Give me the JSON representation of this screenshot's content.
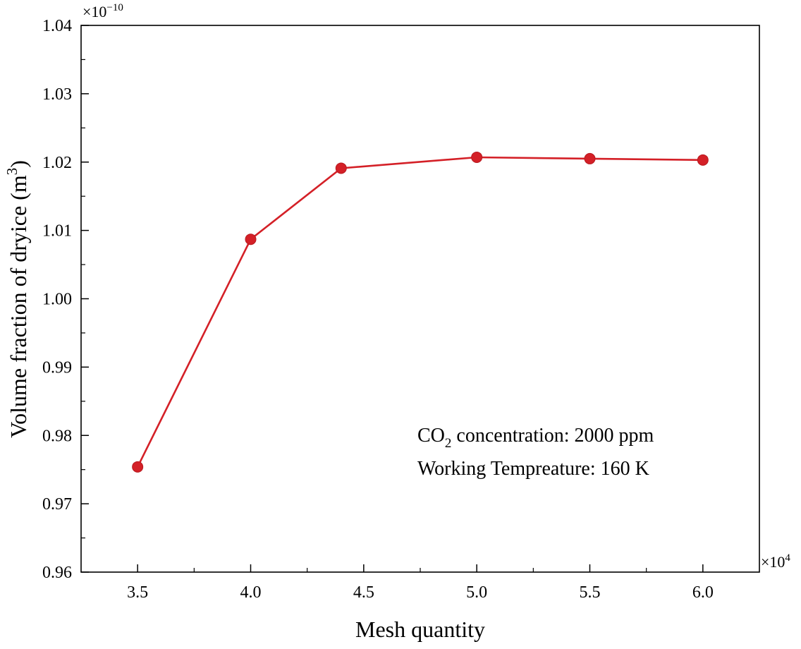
{
  "chart_data": {
    "type": "line",
    "title": "",
    "xlabel": "Mesh quantity",
    "ylabel": "Volume fraction of dryice (m",
    "ylabel_superscript": "3",
    "ylabel_close": ")",
    "x_multiplier": "×10",
    "x_multiplier_exponent": "4",
    "y_multiplier": "×10",
    "y_multiplier_exponent": "−10",
    "xlim": [
      3.25,
      6.25
    ],
    "ylim": [
      0.96,
      1.04
    ],
    "x_ticks": [
      3.5,
      4.0,
      4.5,
      5.0,
      5.5,
      6.0
    ],
    "x_tick_labels": [
      "3.5",
      "4.0",
      "4.5",
      "5.0",
      "5.5",
      "6.0"
    ],
    "y_ticks": [
      0.96,
      0.97,
      0.98,
      0.99,
      1.0,
      1.01,
      1.02,
      1.03,
      1.04
    ],
    "y_tick_labels": [
      "0.96",
      "0.97",
      "0.98",
      "0.99",
      "1.00",
      "1.01",
      "1.02",
      "1.03",
      "1.04"
    ],
    "grid": false,
    "series": [
      {
        "name": "Volume fraction of dryice",
        "color": "#d42027",
        "x": [
          3.5,
          4.0,
          4.4,
          5.0,
          5.5,
          6.0
        ],
        "y": [
          0.9754,
          1.0087,
          1.0191,
          1.0207,
          1.0205,
          1.0203
        ]
      }
    ],
    "annotations": [
      {
        "prefix": "CO",
        "subscript": "2",
        "suffix": " concentration: 2000 ppm"
      },
      {
        "prefix": "Working Tempreature: 160 K",
        "subscript": "",
        "suffix": ""
      }
    ],
    "annotation_position": "lower-right"
  }
}
